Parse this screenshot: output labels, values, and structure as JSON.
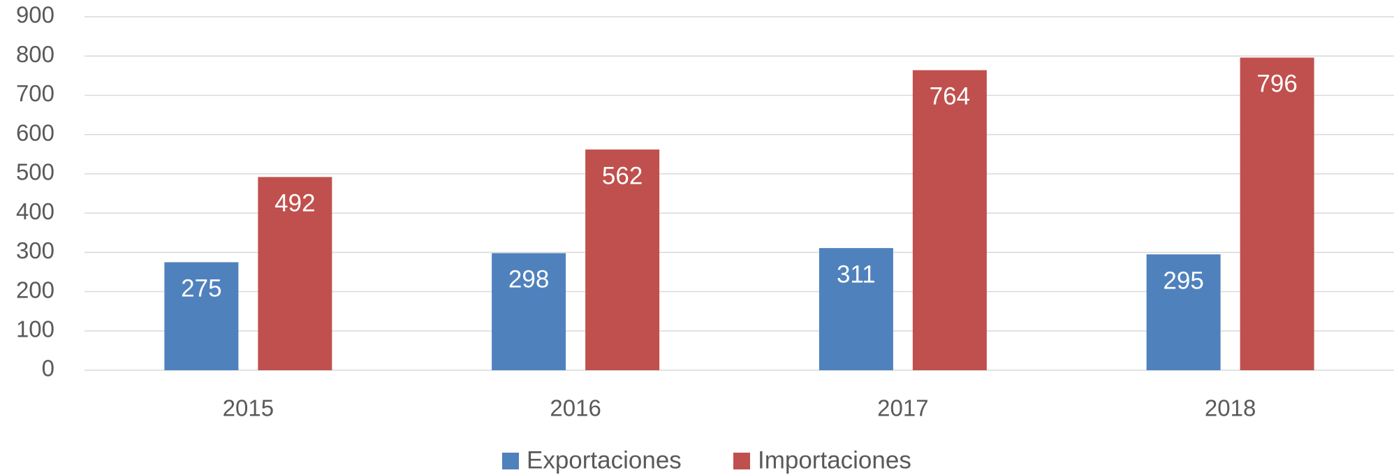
{
  "chart_data": {
    "type": "bar",
    "categories": [
      "2015",
      "2016",
      "2017",
      "2018"
    ],
    "series": [
      {
        "name": "Exportaciones",
        "color": "#4f81bd",
        "values": [
          275,
          298,
          311,
          295
        ]
      },
      {
        "name": "Importaciones",
        "color": "#c0504d",
        "values": [
          492,
          562,
          764,
          796
        ]
      }
    ],
    "ylim": [
      0,
      900
    ],
    "yticks": [
      0,
      100,
      200,
      300,
      400,
      500,
      600,
      700,
      800,
      900
    ],
    "grid": true,
    "legend": "bottom",
    "value_labels_position": "inside-end"
  }
}
